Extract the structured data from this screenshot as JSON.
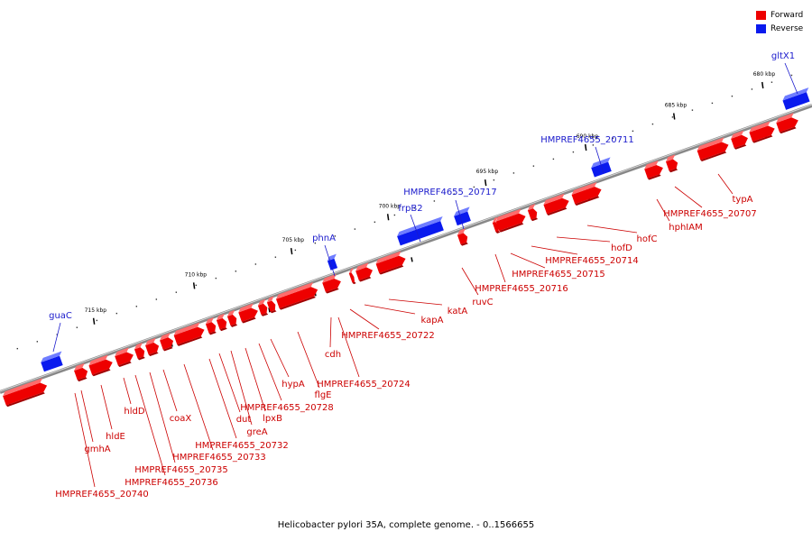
{
  "caption": "Helicobacter pylori 35A, complete genome. - 0..1566655",
  "legend": [
    {
      "label": "Forward",
      "color": "#ee0000"
    },
    {
      "label": "Reverse",
      "color": "#0a1aee"
    }
  ],
  "colors": {
    "forward": "#ee0000",
    "forward_top": "#ff6b6b",
    "forward_side": "#a00000",
    "reverse": "#0a1aee",
    "reverse_top": "#6f7dff",
    "reverse_side": "#00108f",
    "fwd_label": "#cc0000",
    "rev_label": "#1a1acc"
  },
  "ticks": [
    "680 kbp",
    "685 kbp",
    "690 kbp",
    "695 kbp",
    "700 kbp",
    "705 kbp",
    "710 kbp",
    "715 kbp"
  ],
  "reverse_genes": [
    "gltX1",
    "HMPREF4655_20711",
    "HMPREF4655_20717",
    "frpB2",
    "phnA",
    "guaC"
  ],
  "forward_upper_labels": [
    "typA",
    "HMPREF4655_20707",
    "hphIAM",
    "hofC",
    "hofD",
    "HMPREF4655_20714",
    "HMPREF4655_20715",
    "HMPREF4655_20716",
    "ruvC",
    "katA",
    "kapA",
    "HMPREF4655_20722",
    "cdh"
  ],
  "forward_lower_labels": [
    "HMPREF4655_20724",
    "flgE",
    "hypA",
    "HMPREF4655_20728",
    "lpxB",
    "greA",
    "dut",
    "HMPREF4655_20732",
    "HMPREF4655_20733",
    "coaX",
    "HMPREF4655_20735",
    "hldD",
    "HMPREF4655_20736",
    "hldE",
    "gmhA",
    "HMPREF4655_20740"
  ]
}
